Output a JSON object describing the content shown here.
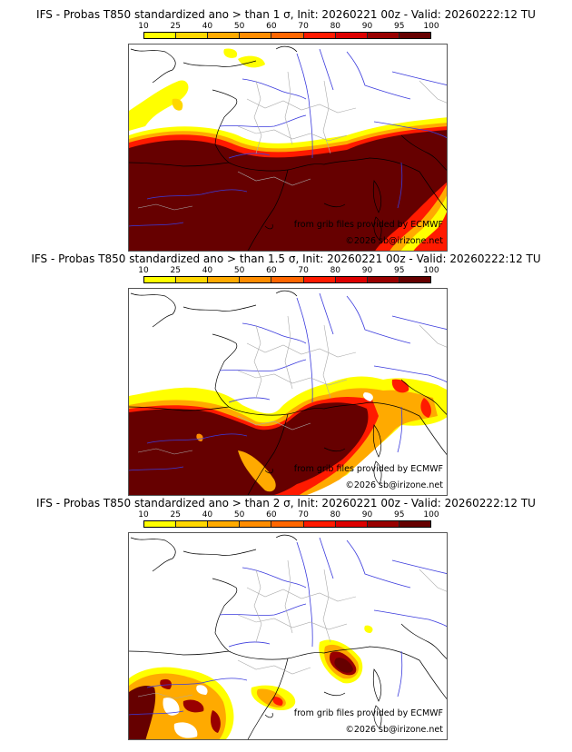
{
  "colorbar": {
    "ticks": [
      "10",
      "25",
      "40",
      "50",
      "60",
      "70",
      "80",
      "90",
      "95",
      "100"
    ],
    "colors": [
      "#ffff00",
      "#ffd700",
      "#ffaa00",
      "#ff8c00",
      "#ff6600",
      "#ff1a00",
      "#dd0000",
      "#990000",
      "#660000"
    ]
  },
  "panels": [
    {
      "title": "IFS - Probas T850  standardized ano > than 1 σ, Init: 20260221 00z - Valid: 20260222:12 TU",
      "threshold": "1 σ",
      "credit_source": "from grib files provided by ECMWF",
      "credit_copyright": "©2026 sb@irizone.net"
    },
    {
      "title": "IFS - Probas T850  standardized ano > than 1.5 σ, Init: 20260221 00z - Valid: 20260222:12 TU",
      "threshold": "1.5 σ",
      "credit_source": "from grib files provided by ECMWF",
      "credit_copyright": "©2026 sb@irizone.net"
    },
    {
      "title": "IFS - Probas T850  standardized ano > than 2 σ, Init: 20260221 00z - Valid: 20260222:12 TU",
      "threshold": "2 σ",
      "credit_source": "from grib files provided by ECMWF",
      "credit_copyright": "©2026 sb@irizone.net"
    }
  ]
}
